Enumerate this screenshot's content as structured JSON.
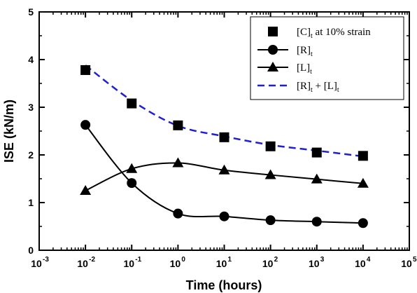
{
  "chart_data": {
    "type": "line",
    "xlabel": "Time (hours)",
    "ylabel": "ISE (kN/m)",
    "xscale": "log",
    "xlim": [
      0.001,
      100000
    ],
    "ylim": [
      0,
      5
    ],
    "yticks": [
      "0",
      "1",
      "2",
      "3",
      "4",
      "5"
    ],
    "xticks": [
      {
        "base": "10",
        "exp": "-3"
      },
      {
        "base": "10",
        "exp": "-2"
      },
      {
        "base": "10",
        "exp": "-1"
      },
      {
        "base": "10",
        "exp": "0"
      },
      {
        "base": "10",
        "exp": "1"
      },
      {
        "base": "10",
        "exp": "2"
      },
      {
        "base": "10",
        "exp": "3"
      },
      {
        "base": "10",
        "exp": "4"
      },
      {
        "base": "10",
        "exp": "5"
      }
    ],
    "grid": false,
    "legend_position": "top-right",
    "x": [
      0.01,
      0.1,
      1,
      10,
      100,
      1000,
      10000
    ],
    "series": [
      {
        "label_main": "[C]",
        "label_sub": "t",
        "label_rest": " at 10% strain",
        "marker": "square",
        "line": "none",
        "color": "#000000",
        "values": [
          3.78,
          3.08,
          2.62,
          2.37,
          2.18,
          2.05,
          1.98
        ]
      },
      {
        "label_main": "[R]",
        "label_sub": "t",
        "label_rest": "",
        "marker": "circle",
        "line": "solid",
        "color": "#000000",
        "values": [
          2.63,
          1.41,
          0.77,
          0.71,
          0.63,
          0.6,
          0.57
        ]
      },
      {
        "label_main": "[L]",
        "label_sub": "t",
        "label_rest": "",
        "marker": "triangle",
        "line": "solid",
        "color": "#000000",
        "values": [
          1.25,
          1.71,
          1.83,
          1.68,
          1.58,
          1.49,
          1.4
        ]
      },
      {
        "label_main": "[R]",
        "label_sub": "t",
        "label_rest": " + [L]",
        "label_sub2": "t",
        "marker": "none",
        "line": "dashed",
        "color": "#1f1fd6",
        "values": [
          3.88,
          3.14,
          2.61,
          2.39,
          2.21,
          2.09,
          1.97
        ]
      }
    ]
  }
}
